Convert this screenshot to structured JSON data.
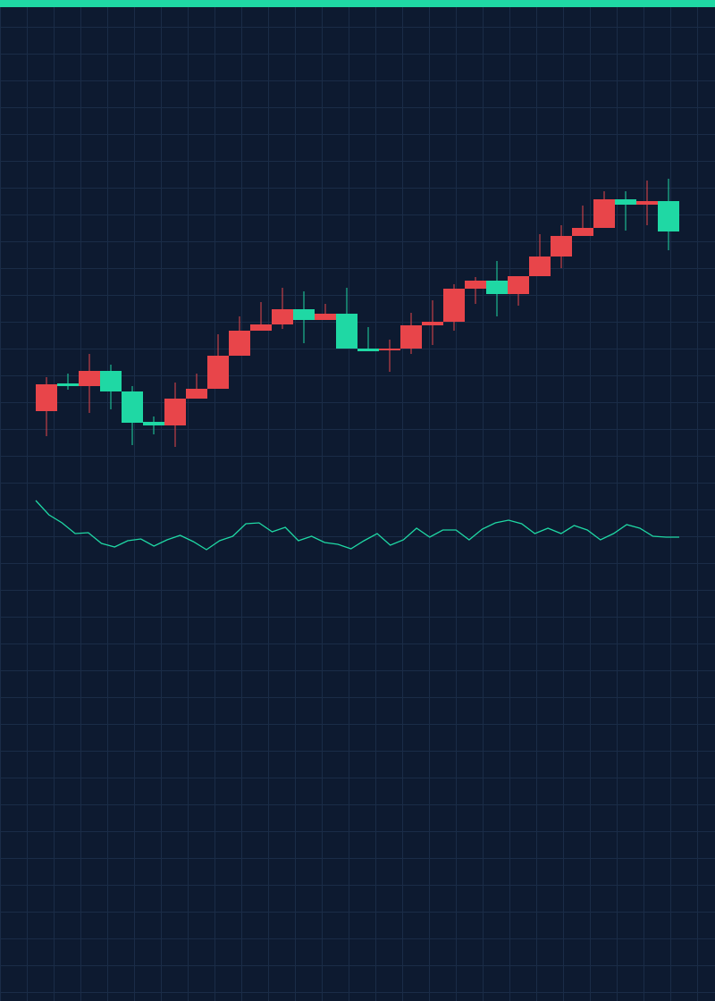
{
  "chart_data": [
    {
      "type": "candlestick",
      "up_color": "#e8454a",
      "down_color": "#1fd8a4",
      "grid": true,
      "ylim": [
        0,
        560
      ],
      "open": [
        100,
        131,
        128,
        145,
        122,
        88,
        84,
        114,
        125,
        162,
        190,
        197,
        214,
        202,
        209,
        170,
        168,
        170,
        196,
        200,
        237,
        246,
        231,
        251,
        273,
        296,
        305,
        337,
        331,
        335
      ],
      "high": [
        138,
        142,
        164,
        152,
        128,
        94,
        132,
        142,
        186,
        206,
        222,
        238,
        234,
        220,
        238,
        194,
        180,
        210,
        224,
        242,
        250,
        268,
        251,
        298,
        308,
        330,
        346,
        346,
        358,
        360
      ],
      "low": [
        72,
        124,
        98,
        102,
        62,
        74,
        60,
        114,
        125,
        162,
        190,
        192,
        176,
        202,
        170,
        167,
        144,
        164,
        174,
        190,
        220,
        206,
        218,
        251,
        260,
        296,
        305,
        302,
        308,
        280
      ],
      "close": [
        130,
        128,
        145,
        122,
        87,
        84,
        114,
        125,
        162,
        190,
        197,
        214,
        202,
        209,
        170,
        167,
        170,
        196,
        200,
        237,
        246,
        231,
        251,
        273,
        296,
        305,
        337,
        331,
        335,
        301
      ]
    },
    {
      "type": "line",
      "color": "#1fd8a4",
      "ylim": [
        0,
        100
      ],
      "values": [
        80,
        64,
        55,
        43,
        44,
        32,
        28,
        35,
        37,
        29,
        36,
        41,
        34,
        25,
        35,
        40,
        54,
        55,
        45,
        50,
        35,
        40,
        33,
        31,
        26,
        35,
        43,
        30,
        36,
        49,
        39,
        47,
        47,
        36,
        48,
        55,
        58,
        54,
        43,
        49,
        43,
        52,
        47,
        36,
        43,
        53,
        49,
        40,
        39,
        39
      ]
    }
  ]
}
